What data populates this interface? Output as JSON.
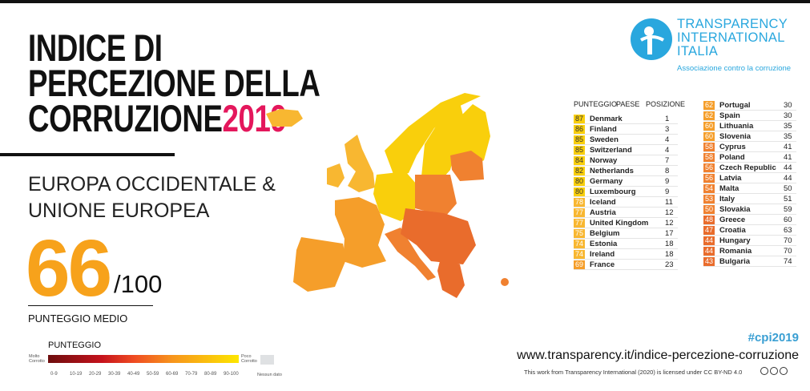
{
  "title": {
    "line1": "INDICE DI",
    "line2": "PERCEZIONE DELLA",
    "line3": "CORRUZIONE",
    "year": "2019"
  },
  "region": {
    "line1": "EUROPA OCCIDENTALE &",
    "line2": "UNIONE EUROPEA"
  },
  "average": {
    "score": "66",
    "out_of": "/100",
    "label": "PUNTEGGIO MEDIO"
  },
  "logo": {
    "line1": "TRANSPARENCY",
    "line2": "INTERNATIONAL",
    "line3": "ITALIA",
    "tagline": "Associazione contro la corruzione"
  },
  "table": {
    "headers": {
      "score": "PUNTEGGIO",
      "country": "PAESE",
      "rank": "POSIZIONE"
    },
    "rows": [
      {
        "score": "87",
        "country": "Denmark",
        "rank": "1"
      },
      {
        "score": "86",
        "country": "Finland",
        "rank": "3"
      },
      {
        "score": "85",
        "country": "Sweden",
        "rank": "4"
      },
      {
        "score": "85",
        "country": "Switzerland",
        "rank": "4"
      },
      {
        "score": "84",
        "country": "Norway",
        "rank": "7"
      },
      {
        "score": "82",
        "country": "Netherlands",
        "rank": "8"
      },
      {
        "score": "80",
        "country": "Germany",
        "rank": "9"
      },
      {
        "score": "80",
        "country": "Luxembourg",
        "rank": "9"
      },
      {
        "score": "78",
        "country": "Iceland",
        "rank": "11"
      },
      {
        "score": "77",
        "country": "Austria",
        "rank": "12"
      },
      {
        "score": "77",
        "country": "United Kingdom",
        "rank": "12"
      },
      {
        "score": "75",
        "country": "Belgium",
        "rank": "17"
      },
      {
        "score": "74",
        "country": "Estonia",
        "rank": "18"
      },
      {
        "score": "74",
        "country": "Ireland",
        "rank": "18"
      },
      {
        "score": "69",
        "country": "France",
        "rank": "23"
      },
      {
        "score": "62",
        "country": "Portugal",
        "rank": "30"
      },
      {
        "score": "62",
        "country": "Spain",
        "rank": "30"
      },
      {
        "score": "60",
        "country": "Lithuania",
        "rank": "35"
      },
      {
        "score": "60",
        "country": "Slovenia",
        "rank": "35"
      },
      {
        "score": "58",
        "country": "Cyprus",
        "rank": "41"
      },
      {
        "score": "58",
        "country": "Poland",
        "rank": "41"
      },
      {
        "score": "56",
        "country": "Czech Republic",
        "rank": "44"
      },
      {
        "score": "56",
        "country": "Latvia",
        "rank": "44"
      },
      {
        "score": "54",
        "country": "Malta",
        "rank": "50"
      },
      {
        "score": "53",
        "country": "Italy",
        "rank": "51"
      },
      {
        "score": "50",
        "country": "Slovakia",
        "rank": "59"
      },
      {
        "score": "48",
        "country": "Greece",
        "rank": "60"
      },
      {
        "score": "47",
        "country": "Croatia",
        "rank": "63"
      },
      {
        "score": "44",
        "country": "Hungary",
        "rank": "70"
      },
      {
        "score": "44",
        "country": "Romania",
        "rank": "70"
      },
      {
        "score": "43",
        "country": "Bulgaria",
        "rank": "74"
      }
    ]
  },
  "colors": {
    "80": "#f9cf0c",
    "70": "#f8b731",
    "60": "#f59e2a",
    "50": "#f08130",
    "40": "#e96c2c"
  },
  "legend": {
    "title": "PUNTEGGIO",
    "low": "Molto Corrotto",
    "high": "Poco Corrotto",
    "no_data": "Nessun dato",
    "ranges": [
      "0-9",
      "10-19",
      "20-29",
      "30-39",
      "40-49",
      "50-59",
      "60-69",
      "70-79",
      "80-89",
      "90-100"
    ]
  },
  "footer": {
    "hashtag": "#cpi2019",
    "url": "www.transparency.it/indice-percezione-corruzione",
    "license": "This work from Transparency International (2020) is licensed under CC BY-ND 4.0"
  }
}
